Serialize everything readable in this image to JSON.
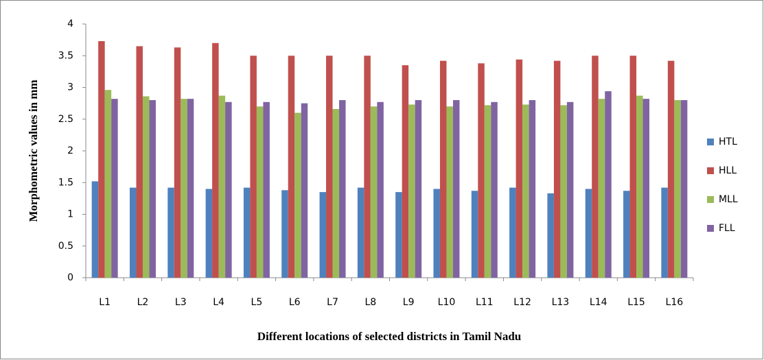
{
  "chart_data": {
    "type": "bar",
    "xlabel": "Different locations of selected districts in Tamil Nadu",
    "ylabel": "Morphometric values in mm",
    "categories": [
      "L1",
      "L2",
      "L3",
      "L4",
      "L5",
      "L6",
      "L7",
      "L8",
      "L9",
      "L10",
      "L11",
      "L12",
      "L13",
      "L14",
      "L15",
      "L16"
    ],
    "series": [
      {
        "name": "HTL",
        "color": "#4f81bd",
        "values": [
          1.52,
          1.42,
          1.42,
          1.4,
          1.42,
          1.38,
          1.35,
          1.42,
          1.35,
          1.4,
          1.37,
          1.42,
          1.33,
          1.4,
          1.37,
          1.42
        ]
      },
      {
        "name": "HLL",
        "color": "#c0504d",
        "values": [
          3.73,
          3.65,
          3.63,
          3.7,
          3.5,
          3.5,
          3.5,
          3.5,
          3.35,
          3.42,
          3.38,
          3.44,
          3.42,
          3.5,
          3.5,
          3.42
        ]
      },
      {
        "name": "MLL",
        "color": "#9bbb59",
        "values": [
          2.96,
          2.86,
          2.82,
          2.87,
          2.7,
          2.6,
          2.66,
          2.7,
          2.73,
          2.7,
          2.72,
          2.73,
          2.72,
          2.82,
          2.87,
          2.8
        ]
      },
      {
        "name": "FLL",
        "color": "#8064a2",
        "values": [
          2.82,
          2.8,
          2.82,
          2.77,
          2.77,
          2.75,
          2.8,
          2.77,
          2.8,
          2.8,
          2.77,
          2.8,
          2.77,
          2.94,
          2.82,
          2.8
        ]
      }
    ],
    "ylim": [
      0,
      4
    ],
    "yticks": [
      0,
      0.5,
      1,
      1.5,
      2,
      2.5,
      3,
      3.5,
      4
    ],
    "grid": false,
    "legend": "right"
  }
}
